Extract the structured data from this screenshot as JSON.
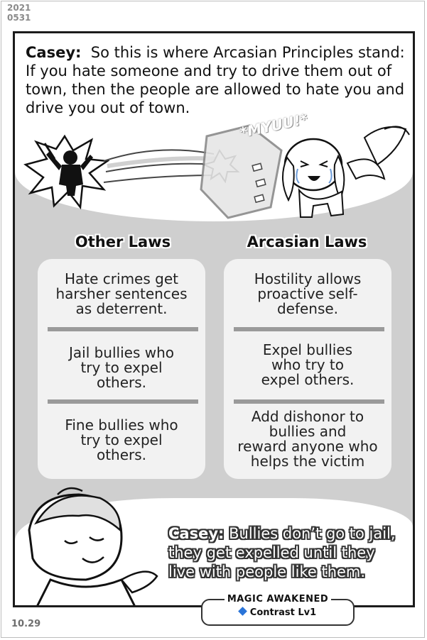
{
  "date_stamp": {
    "year": "2021",
    "monthday": "0531"
  },
  "narration": {
    "speaker": "Casey:",
    "text": "So this is where Arcasian Principles stand: If you hate someone and try to drive them out of town, then the people are allowed to hate you and drive you out of town."
  },
  "sfx": "*MYUU!*",
  "columns": {
    "other": {
      "title": "Other Laws",
      "items": [
        [
          "Hate crimes get",
          "harsher sentences",
          "as deterrent."
        ],
        [
          "Jail bullies who",
          "try to expel",
          "others."
        ],
        [
          "Fine bullies who",
          "try to expel",
          "others."
        ]
      ]
    },
    "arcasian": {
      "title": "Arcasian Laws",
      "items": [
        [
          "Hostility allows",
          "proactive self-",
          "defense."
        ],
        [
          "Expel bullies",
          "who try to",
          "expel others."
        ],
        [
          "Add dishonor to",
          "bullies and",
          "reward anyone who",
          "helps the victim"
        ]
      ]
    }
  },
  "dialogue": {
    "speaker": "Casey:",
    "lines": [
      "Bullies don’t go to jail,",
      "they get expelled  until they",
      "live with people like them."
    ]
  },
  "badge": {
    "title": "MAGIC AWAKENED",
    "skill": "Contrast Lv1",
    "accent_color": "#2a74d8"
  },
  "page_number": "10.29"
}
